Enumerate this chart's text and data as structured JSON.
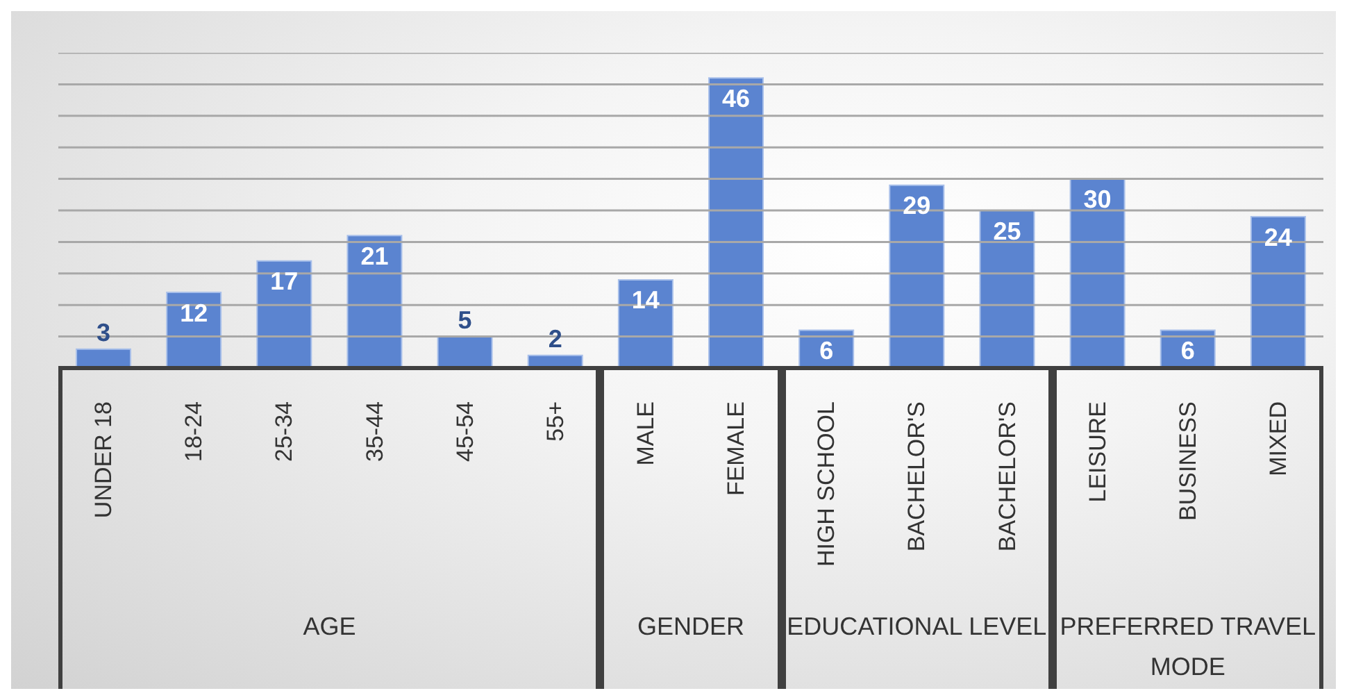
{
  "chart_data": {
    "type": "bar",
    "categories": [
      "UNDER 18",
      "18-24",
      "25-34",
      "35-44",
      "45-54",
      "55+",
      "MALE",
      "FEMALE",
      "HIGH SCHOOL",
      "BACHELOR'S",
      "BACHELOR'S",
      "LEISURE",
      "BUSINESS",
      "MIXED"
    ],
    "values": [
      3,
      12,
      17,
      21,
      5,
      2,
      14,
      46,
      6,
      29,
      25,
      30,
      6,
      24
    ],
    "color": "#5b84d0",
    "ylim": [
      0,
      50
    ],
    "yticks": [
      {
        "value": 0,
        "label": null
      },
      {
        "value": 5,
        "label": null
      },
      {
        "value": 10,
        "label": null
      },
      {
        "value": 15,
        "label": null
      },
      {
        "value": 20,
        "label": null
      },
      {
        "value": 25,
        "label": null
      },
      {
        "value": 30,
        "label": null
      },
      {
        "value": 35,
        "label": null
      },
      {
        "value": 40,
        "label": null
      },
      {
        "value": 45,
        "label": null
      },
      {
        "value": 50,
        "label": null
      }
    ],
    "grid": "y",
    "tick_labels": "x",
    "data_labels": true,
    "annotations": [
      "AGE",
      "GENDER",
      "EDUCATIONAL LEVEL",
      "PREFERRED TRAVEL MODE"
    ]
  }
}
